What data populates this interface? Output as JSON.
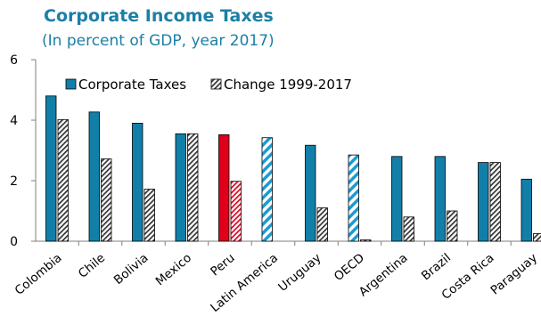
{
  "chart_data": {
    "type": "bar",
    "title": "Corporate Income Taxes",
    "subtitle": "(In percent of GDP, year 2017)",
    "categories": [
      "Colombia",
      "Chile",
      "Bolivia",
      "Mexico",
      "Peru",
      "Latin America",
      "Uruguay",
      "OECD",
      "Argentina",
      "Brazil",
      "Costa Rica",
      "Paraguay"
    ],
    "series": [
      {
        "name": "Corporate Taxes",
        "values": [
          4.8,
          4.27,
          3.9,
          3.55,
          3.52,
          3.42,
          3.17,
          2.85,
          2.8,
          2.8,
          2.6,
          2.05
        ]
      },
      {
        "name": "Change 1999-2017",
        "values": [
          4.02,
          2.72,
          1.72,
          3.55,
          1.98,
          null,
          1.1,
          0.04,
          0.8,
          1.0,
          2.6,
          0.25
        ]
      }
    ],
    "ylim": [
      0,
      6
    ],
    "yticks": [
      0,
      2,
      4,
      6
    ],
    "grid": false,
    "legend": "top-left",
    "highlight": {
      "Peru": "#e0001b",
      "Latin America": "#1b9bd4",
      "OECD": "#1b9bd4"
    },
    "colors": {
      "bar": "#117fa8",
      "outline": "#000000",
      "axis": "#7f7f7f"
    }
  }
}
